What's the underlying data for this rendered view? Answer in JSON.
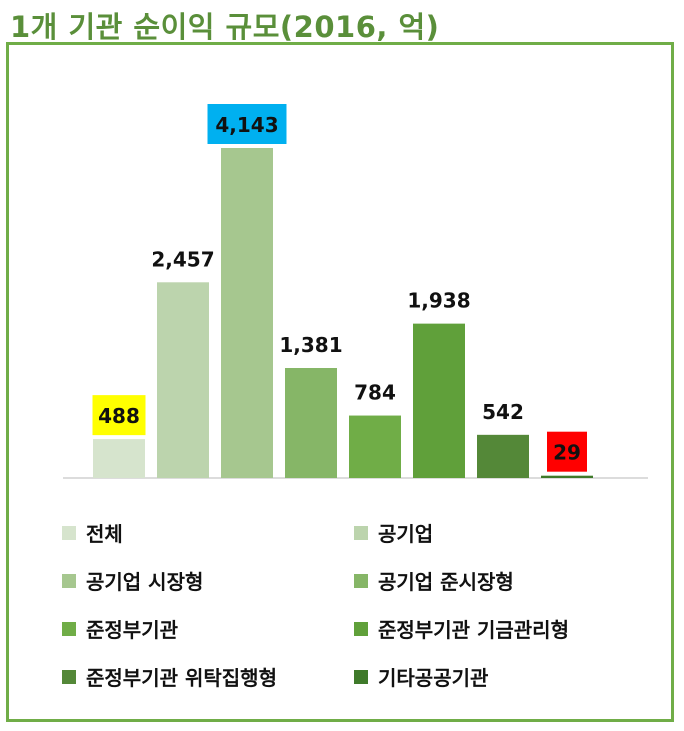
{
  "title": "1개 기관 순이익 규모(2016, 억)",
  "chart_data": {
    "type": "bar",
    "categories": [
      "전체",
      "공기업",
      "공기업 시장형",
      "공기업 준시장형",
      "준정부기관",
      "준정부기관 기금관리형",
      "준정부기관 위탁집행형",
      "기타공공기관"
    ],
    "values": [
      488,
      2457,
      4143,
      1381,
      784,
      1938,
      542,
      29
    ],
    "value_labels": [
      "488",
      "2,457",
      "4,143",
      "1,381",
      "784",
      "1,938",
      "542",
      "29"
    ],
    "colors": [
      "#d6e4cd",
      "#bcd4ad",
      "#a6c78f",
      "#86b667",
      "#70ad47",
      "#60a03a",
      "#548838",
      "#3f7a2a"
    ],
    "label_highlights": [
      "#ffff00",
      null,
      "#00b0f0",
      null,
      null,
      null,
      null,
      "#ff0000"
    ],
    "ylim": [
      0,
      4143
    ],
    "grid": false,
    "legend_position": "bottom"
  }
}
